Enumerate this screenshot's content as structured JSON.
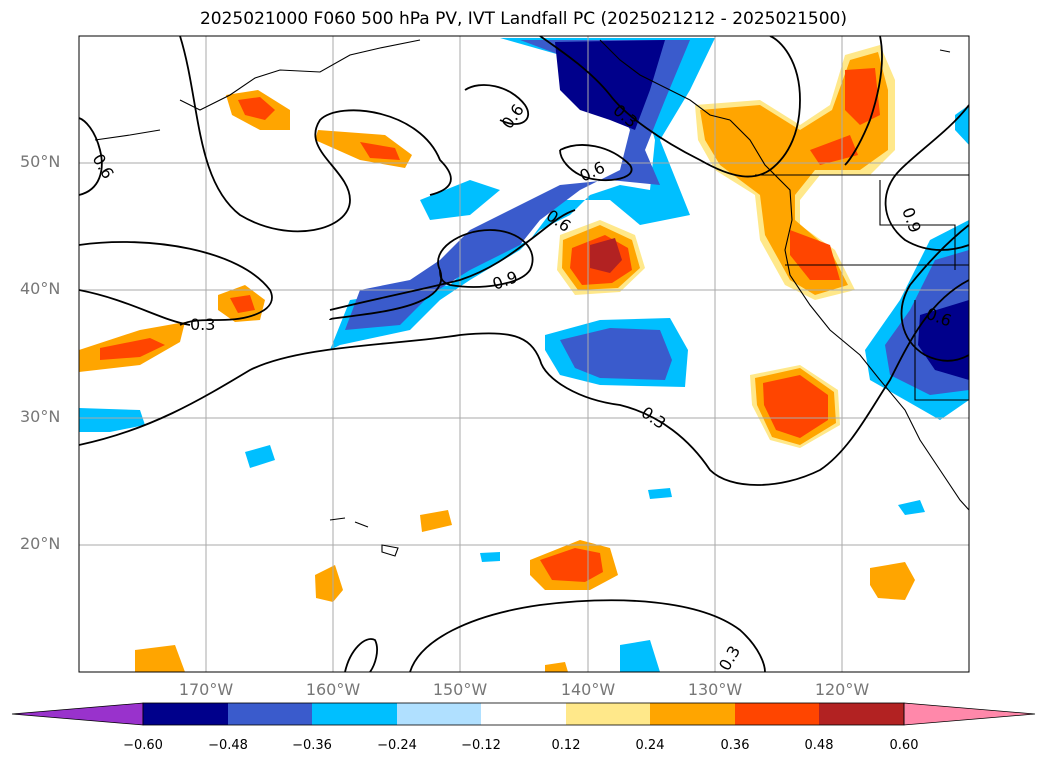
{
  "title": "2025021000 F060 500 hPa PV, IVT Landfall PC (2025021212 - 2025021500)",
  "map": {
    "lon_range": [
      -180,
      -110
    ],
    "lat_range": [
      10,
      60
    ],
    "lat_labels": [
      "20°N",
      "30°N",
      "40°N",
      "50°N"
    ],
    "lon_labels": [
      "170°W",
      "160°W",
      "150°W",
      "140°W",
      "130°W",
      "120°W"
    ],
    "contour_labels": [
      "0.6",
      "0.6",
      "0.3",
      "0.6",
      "0.6",
      "0.9",
      "0.3",
      "0.3",
      "0.3",
      "0.9",
      "0.6"
    ]
  },
  "colorbar": {
    "ticks": [
      "−0.60",
      "−0.48",
      "−0.36",
      "−0.24",
      "−0.12",
      "0.12",
      "0.24",
      "0.36",
      "0.48",
      "0.60"
    ],
    "colors": [
      "#9932cc",
      "#00008b",
      "#3a5bcc",
      "#00bfff",
      "#b0e0ff",
      "#ffffff",
      "#ffe88a",
      "#ffa500",
      "#ff4500",
      "#b22222",
      "#ff88aa"
    ]
  }
}
